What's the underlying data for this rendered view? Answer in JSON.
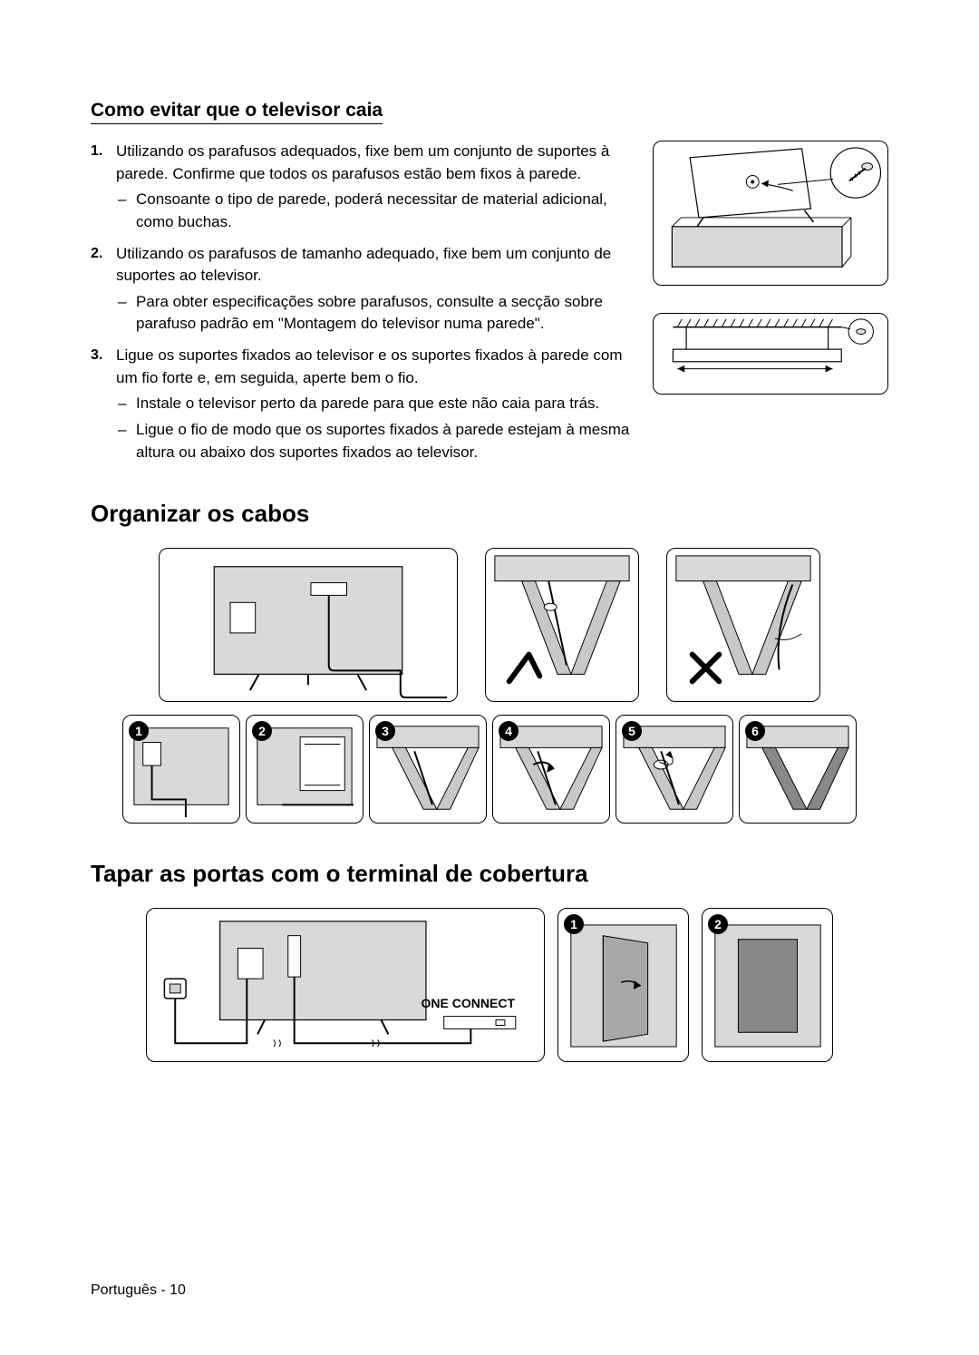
{
  "subheading": "Como evitar que o televisor caia",
  "steps": [
    {
      "num": "1.",
      "text": "Utilizando os parafusos adequados, fixe bem um conjunto de suportes à parede. Confirme que todos os parafusos estão bem fixos à parede.",
      "sub": [
        "Consoante o tipo de parede, poderá necessitar de material adicional, como buchas."
      ]
    },
    {
      "num": "2.",
      "text": "Utilizando os parafusos de tamanho adequado, fixe bem um conjunto de suportes ao televisor.",
      "sub": [
        "Para obter especificações sobre parafusos, consulte a secção sobre parafuso padrão em \"Montagem do televisor numa parede\"."
      ]
    },
    {
      "num": "3.",
      "text": "Ligue os suportes fixados ao televisor e os suportes fixados à parede com um fio forte e, em seguida, aperte bem o fio.",
      "sub": [
        "Instale o televisor perto da parede para que este não caia para trás.",
        "Ligue o fio de modo que os suportes fixados à parede estejam à mesma altura ou abaixo dos suportes fixados ao televisor."
      ]
    }
  ],
  "heading_cables": "Organizar os cabos",
  "heading_cover": "Tapar as portas com o terminal de cobertura",
  "one_connect": "ONE CONNECT",
  "footer_lang": "Português",
  "footer_page": "10",
  "circled": [
    "1",
    "2",
    "3",
    "4",
    "5",
    "6"
  ],
  "circled_b": [
    "1",
    "2"
  ]
}
